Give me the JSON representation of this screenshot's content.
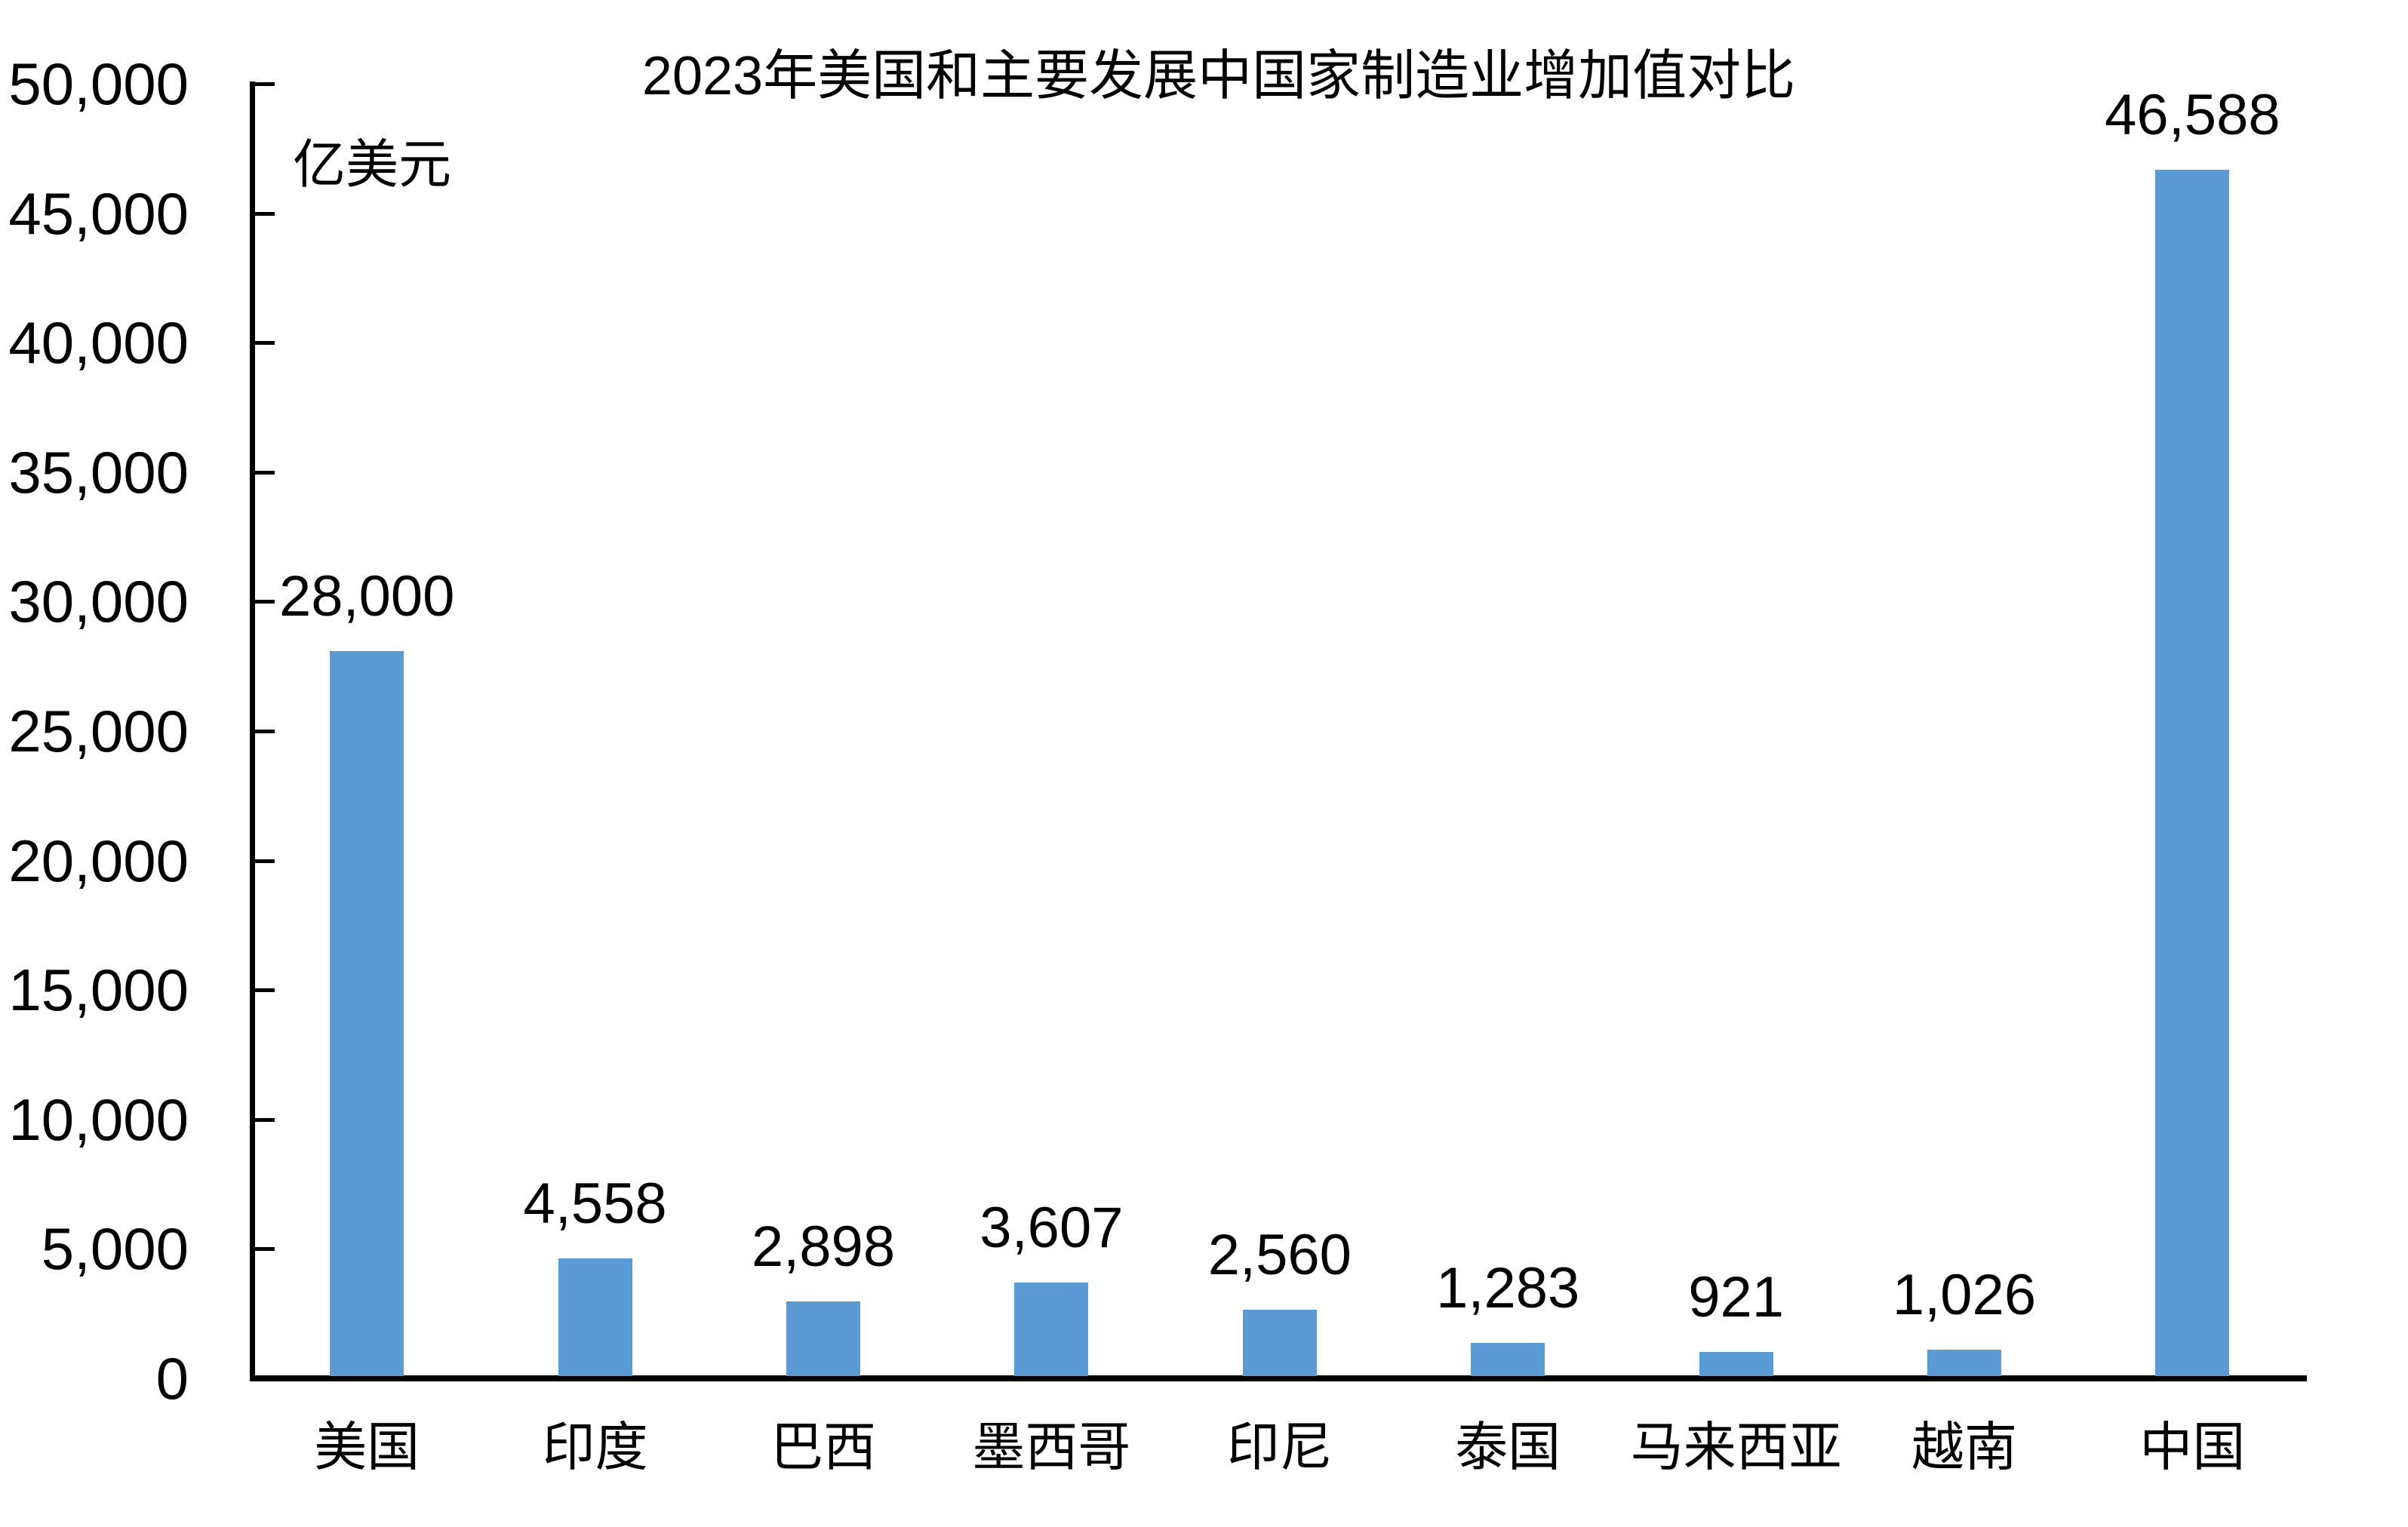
{
  "chart_data": {
    "type": "bar",
    "title": "2023年美国和主要发展中国家制造业增加值对比",
    "unit_label": "亿美元",
    "categories": [
      "美国",
      "印度",
      "巴西",
      "墨西哥",
      "印尼",
      "泰国",
      "马来西亚",
      "越南",
      "中国"
    ],
    "values": [
      28000,
      4558,
      2898,
      3607,
      2560,
      1283,
      921,
      1026,
      46588
    ],
    "data_labels": [
      "28,000",
      "4,558",
      "2,898",
      "3,607",
      "2,560",
      "1,283",
      "921",
      "1,026",
      "46,588"
    ],
    "xlabel": "",
    "ylabel": "",
    "ylim": [
      0,
      50000
    ],
    "ytick_interval": 5000,
    "ytick_labels": [
      "0",
      "5,000",
      "10,000",
      "15,000",
      "20,000",
      "25,000",
      "30,000",
      "35,000",
      "40,000",
      "45,000",
      "50,000"
    ],
    "grid": false,
    "legend": "none",
    "colors": {
      "bar": "#5B9BD5",
      "axis": "#000000",
      "text": "#000000"
    }
  }
}
